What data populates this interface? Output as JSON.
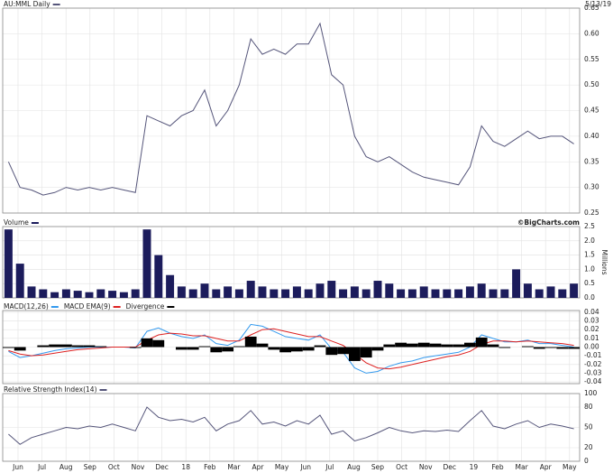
{
  "chart_data": [
    {
      "type": "line",
      "title": "AU:MML Daily",
      "date": "5/13/19",
      "series": [
        {
          "name": "AU:MML Daily",
          "color": "#55557a",
          "values": [
            0.35,
            0.3,
            0.295,
            0.285,
            0.29,
            0.3,
            0.295,
            0.3,
            0.295,
            0.3,
            0.295,
            0.29,
            0.44,
            0.43,
            0.42,
            0.44,
            0.45,
            0.49,
            0.42,
            0.45,
            0.5,
            0.59,
            0.56,
            0.57,
            0.56,
            0.58,
            0.58,
            0.62,
            0.52,
            0.5,
            0.4,
            0.36,
            0.35,
            0.36,
            0.345,
            0.33,
            0.32,
            0.315,
            0.31,
            0.305,
            0.34,
            0.42,
            0.39,
            0.38,
            0.395,
            0.41,
            0.395,
            0.4,
            0.4,
            0.385
          ]
        }
      ],
      "ylim": [
        0.25,
        0.65
      ],
      "yticks": [
        {
          "value": 0.25,
          "label": "0.25"
        },
        {
          "value": 0.3,
          "label": "0.30"
        },
        {
          "value": 0.35,
          "label": "0.35"
        },
        {
          "value": 0.4,
          "label": "0.40"
        },
        {
          "value": 0.45,
          "label": "0.45"
        },
        {
          "value": 0.5,
          "label": "0.50"
        },
        {
          "value": 0.55,
          "label": "0.55"
        },
        {
          "value": 0.6,
          "label": "0.60"
        },
        {
          "value": 0.65,
          "label": "0.65"
        }
      ],
      "grid": true
    },
    {
      "type": "bar",
      "title": "Volume",
      "credit": "©BigCharts.com",
      "ylabel": "Millions",
      "series": [
        {
          "name": "Volume",
          "color": "#1c1c5c",
          "values": [
            2.4,
            1.2,
            0.4,
            0.3,
            0.2,
            0.3,
            0.25,
            0.2,
            0.3,
            0.25,
            0.2,
            0.3,
            2.4,
            1.5,
            0.8,
            0.4,
            0.3,
            0.5,
            0.3,
            0.4,
            0.3,
            0.6,
            0.4,
            0.3,
            0.3,
            0.4,
            0.3,
            0.5,
            0.6,
            0.3,
            0.4,
            0.3,
            0.6,
            0.5,
            0.3,
            0.3,
            0.4,
            0.3,
            0.3,
            0.3,
            0.4,
            0.5,
            0.3,
            0.3,
            1.0,
            0.5,
            0.3,
            0.4,
            0.3,
            0.5
          ]
        }
      ],
      "ylim": [
        0,
        2.5
      ],
      "yticks": [
        {
          "value": 0,
          "label": "0.0"
        },
        {
          "value": 0.5,
          "label": "0.5"
        },
        {
          "value": 1,
          "label": "1.0"
        },
        {
          "value": 1.5,
          "label": "1.5"
        },
        {
          "value": 2,
          "label": "2.0"
        },
        {
          "value": 2.5,
          "label": "2.5"
        }
      ],
      "grid": true
    },
    {
      "type": "line",
      "series": [
        {
          "name": "MACD(12,26)",
          "color": "#3399ee",
          "values": [
            -0.005,
            -0.012,
            -0.01,
            -0.007,
            -0.004,
            -0.002,
            -0.001,
            0,
            0,
            0,
            0,
            -0.001,
            0.018,
            0.022,
            0.016,
            0.012,
            0.01,
            0.014,
            0.004,
            0.002,
            0.008,
            0.026,
            0.024,
            0.018,
            0.012,
            0.01,
            0.008,
            0.014,
            -0.002,
            -0.006,
            -0.024,
            -0.03,
            -0.028,
            -0.022,
            -0.018,
            -0.016,
            -0.012,
            -0.01,
            -0.008,
            -0.006,
            0,
            0.014,
            0.01,
            0.006,
            0.006,
            0.008,
            0.004,
            0.004,
            0.002,
            0
          ]
        },
        {
          "name": "MACD EMA(9)",
          "color": "#dd2222",
          "values": [
            -0.004,
            -0.008,
            -0.01,
            -0.009,
            -0.007,
            -0.005,
            -0.003,
            -0.002,
            -0.001,
            0,
            0,
            0,
            0.008,
            0.014,
            0.016,
            0.015,
            0.013,
            0.013,
            0.01,
            0.007,
            0.007,
            0.014,
            0.02,
            0.021,
            0.018,
            0.015,
            0.012,
            0.012,
            0.007,
            0.002,
            -0.008,
            -0.018,
            -0.024,
            -0.025,
            -0.023,
            -0.02,
            -0.017,
            -0.014,
            -0.011,
            -0.009,
            -0.005,
            0.003,
            0.007,
            0.007,
            0.006,
            0.007,
            0.006,
            0.005,
            0.004,
            0.002
          ]
        },
        {
          "name": "Divergence",
          "color": "#000000",
          "type": "area",
          "values": [
            -0.001,
            -0.004,
            0,
            0.002,
            0.003,
            0.003,
            0.002,
            0.002,
            0.001,
            0,
            0,
            -0.001,
            0.01,
            0.008,
            0,
            -0.003,
            -0.003,
            0.001,
            -0.006,
            -0.005,
            0.001,
            0.012,
            0.004,
            -0.003,
            -0.006,
            -0.005,
            -0.004,
            0.002,
            -0.009,
            -0.008,
            -0.016,
            -0.012,
            -0.004,
            0.003,
            0.005,
            0.004,
            0.005,
            0.004,
            0.003,
            0.003,
            0.005,
            0.011,
            0.003,
            -0.001,
            0,
            0.001,
            -0.002,
            -0.001,
            -0.002,
            -0.002
          ]
        }
      ],
      "ylim": [
        -0.042,
        0.042
      ],
      "yticks": [
        {
          "value": 0.04,
          "label": "0.04"
        },
        {
          "value": 0.03,
          "label": "0.03"
        },
        {
          "value": 0.02,
          "label": "0.02"
        },
        {
          "value": 0.01,
          "label": "0.01"
        },
        {
          "value": 0,
          "label": "0.00"
        },
        {
          "value": -0.01,
          "label": "-0.01"
        },
        {
          "value": -0.02,
          "label": "-0.02"
        },
        {
          "value": -0.03,
          "label": "-0.03"
        },
        {
          "value": -0.04,
          "label": "-0.04"
        }
      ],
      "grid": true
    },
    {
      "type": "line",
      "series": [
        {
          "name": "Relative Strength Index(14)",
          "color": "#55557a",
          "values": [
            40,
            25,
            35,
            40,
            45,
            50,
            48,
            52,
            50,
            55,
            50,
            45,
            80,
            65,
            60,
            62,
            58,
            65,
            45,
            55,
            60,
            75,
            55,
            58,
            52,
            60,
            55,
            68,
            40,
            45,
            30,
            35,
            42,
            50,
            45,
            42,
            45,
            44,
            46,
            44,
            60,
            75,
            52,
            48,
            55,
            60,
            50,
            55,
            52,
            48
          ]
        }
      ],
      "ylim": [
        0,
        100
      ],
      "yticks": [
        100,
        80,
        50,
        20,
        0
      ],
      "grid": true,
      "xtick_labels": [
        "Jun",
        "Jul",
        "Aug",
        "Sep",
        "Oct",
        "Nov",
        "Dec",
        "18",
        "Feb",
        "Mar",
        "Apr",
        "May",
        "Jun",
        "Jul",
        "Aug",
        "Sep",
        "Oct",
        "Nov",
        "Dec",
        "19",
        "Feb",
        "Mar",
        "Apr",
        "May"
      ]
    }
  ]
}
